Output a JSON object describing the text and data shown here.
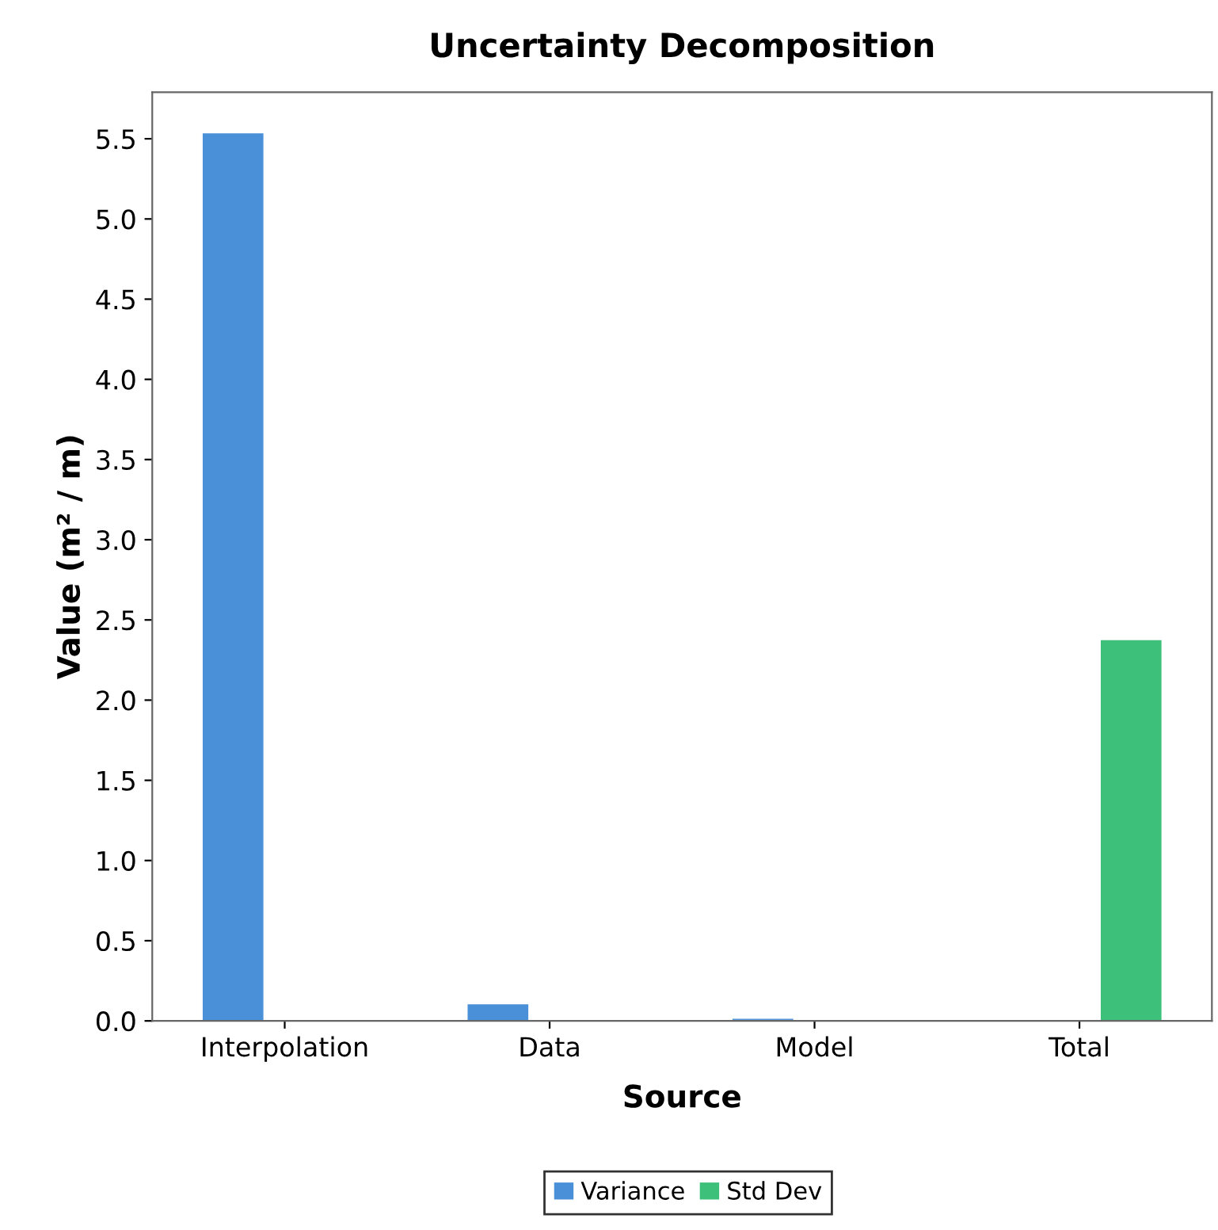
{
  "chart_data": {
    "type": "bar",
    "title": "Uncertainty Decomposition",
    "xlabel": "Source",
    "ylabel": "Value (m² / m)",
    "categories": [
      "Interpolation",
      "Data",
      "Model",
      "Total"
    ],
    "series": [
      {
        "name": "Variance",
        "color": "#4a90d9",
        "values": [
          5.53,
          0.1,
          0.01,
          null
        ]
      },
      {
        "name": "Std Dev",
        "color": "#3cc07a",
        "values": [
          null,
          null,
          null,
          2.37
        ]
      }
    ],
    "ylim": [
      0,
      5.79
    ],
    "yticks": [
      {
        "value": 0,
        "label": "0.0"
      },
      0.5,
      {
        "value": 1,
        "label": "1.0"
      },
      1.5,
      {
        "value": 2,
        "label": "2.0"
      },
      2.5,
      {
        "value": 3,
        "label": "3.0"
      },
      3.5,
      {
        "value": 4,
        "label": "4.0"
      },
      4.5,
      {
        "value": 5,
        "label": "5.0"
      },
      5.5
    ],
    "grid": false,
    "legend": "bottom"
  }
}
